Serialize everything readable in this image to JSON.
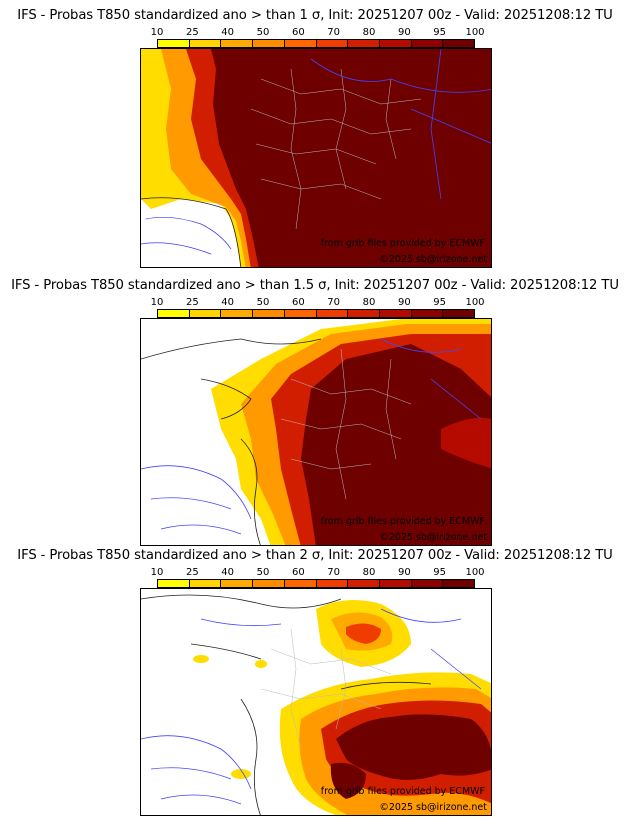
{
  "colorbar": {
    "ticks": [
      "10",
      "25",
      "40",
      "50",
      "60",
      "70",
      "80",
      "90",
      "95",
      "100"
    ],
    "colors": [
      "#ffff00",
      "#ffd400",
      "#ffaa00",
      "#ff8c00",
      "#ff6600",
      "#f03c00",
      "#d21e00",
      "#b40a00",
      "#8c0000",
      "#6e0000"
    ]
  },
  "panels": [
    {
      "title": "IFS - Probas T850  standardized ano > than 1 σ, Init: 20251207 00z - Valid: 20251208:12 TU",
      "credit_source": "from grib files provided by ECMWF",
      "credit_site": "©2025 sb@irizone.net"
    },
    {
      "title": "IFS - Probas T850  standardized ano > than 1.5 σ, Init: 20251207 00z - Valid: 20251208:12 TU",
      "credit_source": "from grib files provided by ECMWF",
      "credit_site": "©2025 sb@irizone.net"
    },
    {
      "title": "IFS - Probas T850  standardized ano > than 2 σ, Init: 20251207 00z - Valid: 20251208:12 TU",
      "credit_source": "from grib files provided by ECMWF",
      "credit_site": "©2025 sb@irizone.net"
    }
  ]
}
